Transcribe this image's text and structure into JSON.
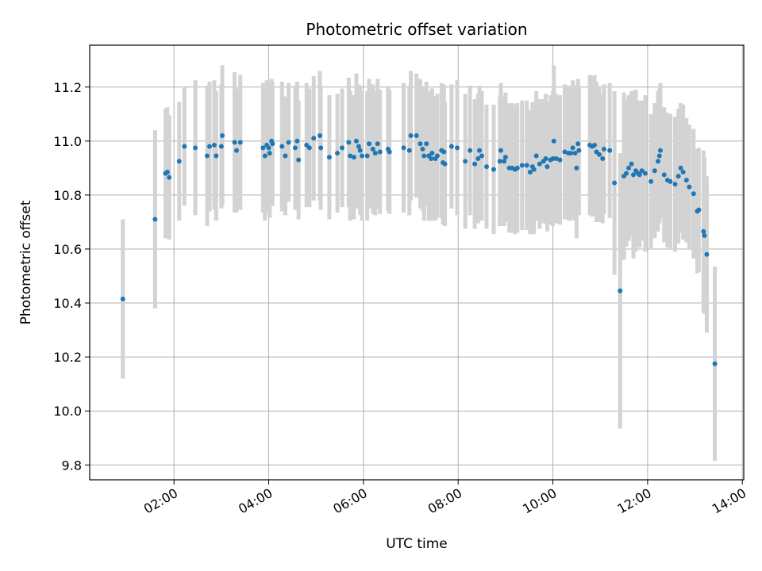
{
  "chart_data": {
    "type": "scatter",
    "title": "Photometric offset variation",
    "xlabel": "UTC time",
    "ylabel": "Photometric offset",
    "grid": true,
    "x_unit": "hours (UTC)",
    "xlim": [
      0.22,
      14.03
    ],
    "ylim": [
      9.745,
      11.355
    ],
    "xticks": [
      {
        "value": 2,
        "label": "02:00"
      },
      {
        "value": 4,
        "label": "04:00"
      },
      {
        "value": 6,
        "label": "06:00"
      },
      {
        "value": 8,
        "label": "08:00"
      },
      {
        "value": 10,
        "label": "10:00"
      },
      {
        "value": 12,
        "label": "12:00"
      },
      {
        "value": 14,
        "label": "14:00"
      }
    ],
    "yticks": [
      {
        "value": 9.8,
        "label": "9.8"
      },
      {
        "value": 10.0,
        "label": "10.0"
      },
      {
        "value": 10.2,
        "label": "10.2"
      },
      {
        "value": 10.4,
        "label": "10.4"
      },
      {
        "value": 10.6,
        "label": "10.6"
      },
      {
        "value": 10.8,
        "label": "10.8"
      },
      {
        "value": 11.0,
        "label": "11.0"
      },
      {
        "value": 11.2,
        "label": "11.2"
      }
    ],
    "colors": {
      "points": "#1f77b4",
      "errorbars": "#d3d3d3",
      "grid": "#b0b0b0"
    },
    "series": [
      {
        "points": [
          [
            0.92,
            10.415,
            0.295
          ],
          [
            1.6,
            10.71,
            0.33
          ],
          [
            1.82,
            10.88,
            0.24
          ],
          [
            1.86,
            10.885,
            0.24
          ],
          [
            1.9,
            10.865,
            0.23
          ],
          [
            2.11,
            10.925,
            0.22
          ],
          [
            2.22,
            10.98,
            0.22
          ],
          [
            2.45,
            10.975,
            0.25
          ],
          [
            2.7,
            10.945,
            0.26
          ],
          [
            2.75,
            10.98,
            0.24
          ],
          [
            2.85,
            10.985,
            0.24
          ],
          [
            2.89,
            10.945,
            0.24
          ],
          [
            3.02,
            11.02,
            0.26
          ],
          [
            3.0,
            10.98,
            0.23
          ],
          [
            3.28,
            10.995,
            0.26
          ],
          [
            3.32,
            10.965,
            0.23
          ],
          [
            3.4,
            10.995,
            0.25
          ],
          [
            3.88,
            10.975,
            0.24
          ],
          [
            3.92,
            10.945,
            0.24
          ],
          [
            3.96,
            10.985,
            0.24
          ],
          [
            4.0,
            10.975,
            0.24
          ],
          [
            4.02,
            10.955,
            0.24
          ],
          [
            4.06,
            11.0,
            0.23
          ],
          [
            4.08,
            10.99,
            0.23
          ],
          [
            4.28,
            10.98,
            0.24
          ],
          [
            4.35,
            10.945,
            0.22
          ],
          [
            4.42,
            10.995,
            0.22
          ],
          [
            4.56,
            10.975,
            0.23
          ],
          [
            4.6,
            11.0,
            0.22
          ],
          [
            4.63,
            10.93,
            0.22
          ],
          [
            4.8,
            10.985,
            0.23
          ],
          [
            4.86,
            10.975,
            0.22
          ],
          [
            4.95,
            11.01,
            0.23
          ],
          [
            5.08,
            11.02,
            0.24
          ],
          [
            5.1,
            10.975,
            0.23
          ],
          [
            5.28,
            10.94,
            0.23
          ],
          [
            5.45,
            10.955,
            0.22
          ],
          [
            5.55,
            10.975,
            0.22
          ],
          [
            5.69,
            10.995,
            0.24
          ],
          [
            5.72,
            10.945,
            0.24
          ],
          [
            5.8,
            10.94,
            0.23
          ],
          [
            5.85,
            11.0,
            0.25
          ],
          [
            5.9,
            10.98,
            0.23
          ],
          [
            5.93,
            10.965,
            0.24
          ],
          [
            5.97,
            10.945,
            0.24
          ],
          [
            6.08,
            10.945,
            0.24
          ],
          [
            6.12,
            10.99,
            0.24
          ],
          [
            6.2,
            10.97,
            0.24
          ],
          [
            6.25,
            10.955,
            0.23
          ],
          [
            6.3,
            10.99,
            0.24
          ],
          [
            6.35,
            10.96,
            0.23
          ],
          [
            6.52,
            10.97,
            0.23
          ],
          [
            6.55,
            10.96,
            0.23
          ],
          [
            6.85,
            10.975,
            0.24
          ],
          [
            6.97,
            10.965,
            0.24
          ],
          [
            7.0,
            11.02,
            0.24
          ],
          [
            7.12,
            11.02,
            0.23
          ],
          [
            7.2,
            10.99,
            0.24
          ],
          [
            7.25,
            10.97,
            0.23
          ],
          [
            7.28,
            10.945,
            0.24
          ],
          [
            7.33,
            10.99,
            0.23
          ],
          [
            7.38,
            10.945,
            0.24
          ],
          [
            7.43,
            10.935,
            0.23
          ],
          [
            7.45,
            10.955,
            0.24
          ],
          [
            7.52,
            10.935,
            0.23
          ],
          [
            7.56,
            10.945,
            0.23
          ],
          [
            7.65,
            10.965,
            0.25
          ],
          [
            7.7,
            10.96,
            0.25
          ],
          [
            7.72,
            10.915,
            0.23
          ],
          [
            7.68,
            10.92,
            0.23
          ],
          [
            7.86,
            10.98,
            0.23
          ],
          [
            7.98,
            10.975,
            0.25
          ],
          [
            8.15,
            10.925,
            0.25
          ],
          [
            8.25,
            10.965,
            0.24
          ],
          [
            8.35,
            10.915,
            0.24
          ],
          [
            8.42,
            10.935,
            0.24
          ],
          [
            8.45,
            10.965,
            0.24
          ],
          [
            8.5,
            10.945,
            0.24
          ],
          [
            8.6,
            10.905,
            0.23
          ],
          [
            8.75,
            10.895,
            0.24
          ],
          [
            8.88,
            10.925,
            0.24
          ],
          [
            8.9,
            10.965,
            0.25
          ],
          [
            8.97,
            10.925,
            0.24
          ],
          [
            9.0,
            10.94,
            0.24
          ],
          [
            9.08,
            10.9,
            0.24
          ],
          [
            9.14,
            10.9,
            0.24
          ],
          [
            9.2,
            10.895,
            0.24
          ],
          [
            9.25,
            10.9,
            0.24
          ],
          [
            9.35,
            10.91,
            0.24
          ],
          [
            9.45,
            10.91,
            0.24
          ],
          [
            9.52,
            10.885,
            0.23
          ],
          [
            9.57,
            10.905,
            0.24
          ],
          [
            9.6,
            10.895,
            0.24
          ],
          [
            9.65,
            10.945,
            0.24
          ],
          [
            9.72,
            10.915,
            0.24
          ],
          [
            9.8,
            10.925,
            0.23
          ],
          [
            9.85,
            10.935,
            0.24
          ],
          [
            9.88,
            10.905,
            0.24
          ],
          [
            9.95,
            10.93,
            0.24
          ],
          [
            10.0,
            10.935,
            0.25
          ],
          [
            10.02,
            11.0,
            0.28
          ],
          [
            10.07,
            10.935,
            0.24
          ],
          [
            10.15,
            10.93,
            0.24
          ],
          [
            10.25,
            10.96,
            0.25
          ],
          [
            10.33,
            10.955,
            0.25
          ],
          [
            10.38,
            10.955,
            0.25
          ],
          [
            10.42,
            10.975,
            0.25
          ],
          [
            10.47,
            10.955,
            0.25
          ],
          [
            10.5,
            10.9,
            0.26
          ],
          [
            10.53,
            10.99,
            0.24
          ],
          [
            10.55,
            10.965,
            0.24
          ],
          [
            10.78,
            10.985,
            0.26
          ],
          [
            10.83,
            10.98,
            0.26
          ],
          [
            10.88,
            10.985,
            0.26
          ],
          [
            10.92,
            10.96,
            0.26
          ],
          [
            10.98,
            10.95,
            0.25
          ],
          [
            11.05,
            10.935,
            0.24
          ],
          [
            11.08,
            10.97,
            0.24
          ],
          [
            11.2,
            10.965,
            0.25
          ],
          [
            11.3,
            10.845,
            0.34
          ],
          [
            11.42,
            10.445,
            0.51
          ],
          [
            11.5,
            10.87,
            0.31
          ],
          [
            11.55,
            10.88,
            0.27
          ],
          [
            11.6,
            10.9,
            0.27
          ],
          [
            11.66,
            10.915,
            0.27
          ],
          [
            11.7,
            10.875,
            0.31
          ],
          [
            11.75,
            10.89,
            0.3
          ],
          [
            11.8,
            10.88,
            0.27
          ],
          [
            11.83,
            10.875,
            0.27
          ],
          [
            11.88,
            10.89,
            0.26
          ],
          [
            11.95,
            10.88,
            0.29
          ],
          [
            12.07,
            10.85,
            0.25
          ],
          [
            12.15,
            10.89,
            0.25
          ],
          [
            12.22,
            10.925,
            0.26
          ],
          [
            12.25,
            10.945,
            0.25
          ],
          [
            12.27,
            10.965,
            0.25
          ],
          [
            12.35,
            10.875,
            0.25
          ],
          [
            12.42,
            10.855,
            0.25
          ],
          [
            12.48,
            10.85,
            0.25
          ],
          [
            12.58,
            10.84,
            0.25
          ],
          [
            12.65,
            10.87,
            0.25
          ],
          [
            12.7,
            10.9,
            0.24
          ],
          [
            12.75,
            10.885,
            0.25
          ],
          [
            12.82,
            10.855,
            0.23
          ],
          [
            12.88,
            10.83,
            0.23
          ],
          [
            12.97,
            10.805,
            0.24
          ],
          [
            13.05,
            10.74,
            0.23
          ],
          [
            13.08,
            10.745,
            0.23
          ],
          [
            13.18,
            10.665,
            0.3
          ],
          [
            13.2,
            10.65,
            0.29
          ],
          [
            13.25,
            10.58,
            0.29
          ],
          [
            13.42,
            10.175,
            0.36
          ]
        ]
      }
    ]
  }
}
